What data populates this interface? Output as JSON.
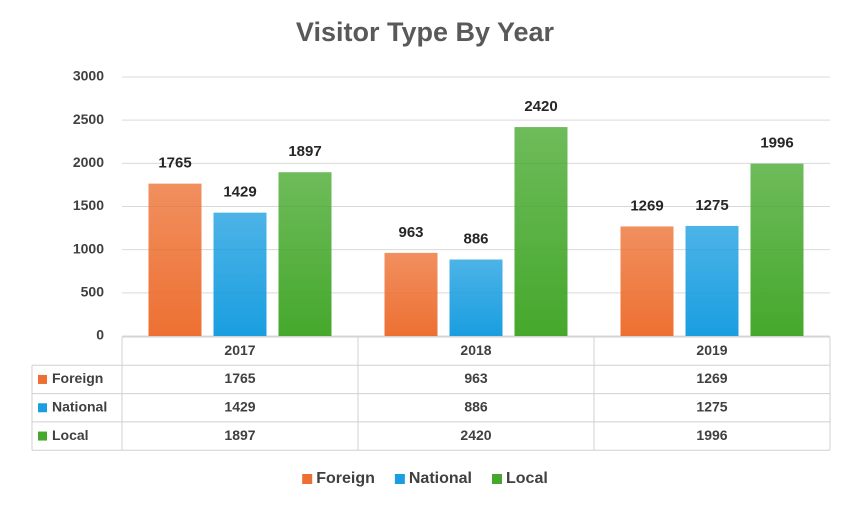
{
  "chart_data": {
    "type": "bar",
    "title": "Visitor Type By Year",
    "categories": [
      "2017",
      "2018",
      "2019"
    ],
    "series": [
      {
        "name": "Foreign",
        "color": "#ed7032",
        "values": [
          1765,
          963,
          1269
        ]
      },
      {
        "name": "National",
        "color": "#1a9ee0",
        "values": [
          1429,
          886,
          1275
        ]
      },
      {
        "name": "Local",
        "color": "#45a82c",
        "values": [
          1897,
          2420,
          1996
        ]
      }
    ],
    "ylim": [
      0,
      3000
    ],
    "yticks": [
      0,
      500,
      1000,
      1500,
      2000,
      2500,
      3000
    ],
    "grid": true,
    "data_labels": true,
    "data_table": true,
    "legend": "bottom"
  }
}
